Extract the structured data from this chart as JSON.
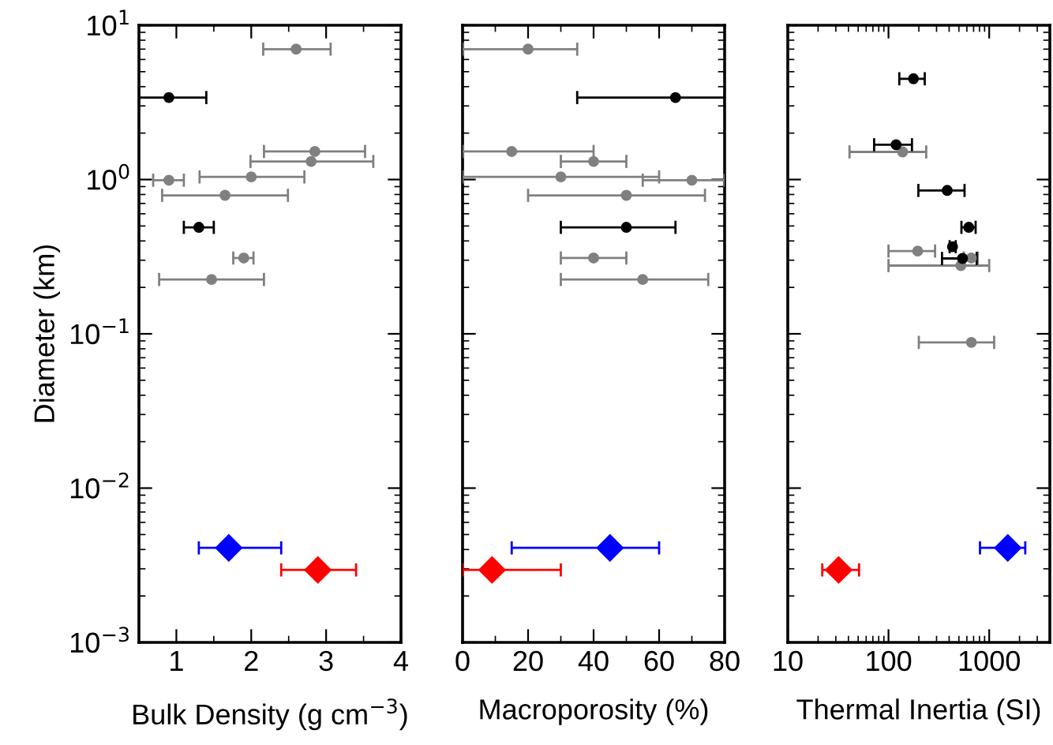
{
  "chart_data": [
    {
      "type": "scatter",
      "xlabel": "Bulk Density (g cm$^{−3}$)",
      "ylabel": "Diameter (km)",
      "xlim": [
        0.5,
        4
      ],
      "xticks": [
        1,
        2,
        3,
        4
      ],
      "ylim": [
        0.001,
        10
      ],
      "log": "y",
      "yticks": [
        {
          "value": 0.001,
          "label": "10$^{−3}$"
        },
        {
          "value": 0.01,
          "label": "10$^{−2}$"
        },
        {
          "value": 0.1,
          "label": "10$^{−1}$"
        },
        {
          "value": 1,
          "label": "10$^{0}$"
        },
        {
          "value": 10,
          "label": "10$^{1}$"
        }
      ],
      "grid": false,
      "legend": false,
      "series": [
        {
          "color": "#808080",
          "marker": "circle",
          "x": [
            2.6,
            2.85,
            2.8,
            2.0,
            0.9,
            1.65,
            1.9,
            1.47
          ],
          "values": [
            7.0,
            1.52,
            1.31,
            1.04,
            0.99,
            0.79,
            0.31,
            0.225
          ],
          "xerrors": [
            [
              2.16,
              3.06
            ],
            [
              2.17,
              3.52
            ],
            [
              1.99,
              3.63
            ],
            [
              1.31,
              2.71
            ],
            [
              0.69,
              1.1
            ],
            [
              0.81,
              2.49
            ],
            [
              1.76,
              2.03
            ],
            [
              0.77,
              2.17
            ]
          ]
        },
        {
          "color": "#000000",
          "marker": "circle",
          "x": [
            0.9,
            1.3
          ],
          "values": [
            3.4,
            0.49
          ],
          "xerrors": [
            [
              0.5,
              1.4
            ],
            [
              1.1,
              1.5
            ]
          ]
        },
        {
          "color": "#0000ff",
          "marker": "diamond",
          "x": [
            1.7
          ],
          "values": [
            0.0041
          ],
          "xerrors": [
            [
              1.3,
              2.4
            ]
          ]
        },
        {
          "color": "#ff0000",
          "marker": "diamond",
          "x": [
            2.89
          ],
          "values": [
            0.00295
          ],
          "xerrors": [
            [
              2.4,
              3.4
            ]
          ]
        }
      ]
    },
    {
      "type": "scatter",
      "xlabel": "Macroporosity (%)",
      "xlim": [
        0,
        80
      ],
      "xticks": [
        0,
        20,
        40,
        60,
        80
      ],
      "ylim": [
        0.001,
        10
      ],
      "log": "y",
      "yticks": [
        {
          "value": 0.001,
          "label": null
        },
        {
          "value": 0.01,
          "label": null
        },
        {
          "value": 0.1,
          "label": null
        },
        {
          "value": 1,
          "label": null
        },
        {
          "value": 10,
          "label": null
        }
      ],
      "tick_labels": "x",
      "grid": false,
      "legend": false,
      "series": [
        {
          "color": "#808080",
          "marker": "circle",
          "x": [
            20,
            15,
            40,
            30,
            70,
            50,
            40,
            55
          ],
          "values": [
            7.0,
            1.52,
            1.31,
            1.04,
            0.99,
            0.79,
            0.31,
            0.225
          ],
          "xerrors": [
            [
              0,
              35
            ],
            [
              0,
              40
            ],
            [
              30,
              50
            ],
            [
              0,
              60
            ],
            [
              55,
              80
            ],
            [
              20,
              74
            ],
            [
              30,
              50
            ],
            [
              30,
              75
            ]
          ]
        },
        {
          "color": "#000000",
          "marker": "circle",
          "x": [
            65,
            50
          ],
          "values": [
            3.4,
            0.49
          ],
          "xerrors": [
            [
              35,
              80
            ],
            [
              30,
              65
            ]
          ]
        },
        {
          "color": "#0000ff",
          "marker": "diamond",
          "x": [
            45
          ],
          "values": [
            0.0041
          ],
          "xerrors": [
            [
              15,
              60
            ]
          ]
        },
        {
          "color": "#ff0000",
          "marker": "diamond",
          "x": [
            9
          ],
          "values": [
            0.00295
          ],
          "xerrors": [
            [
              0,
              30
            ]
          ]
        }
      ]
    },
    {
      "type": "scatter",
      "xlabel": "Thermal Inertia (SI)",
      "log": "xy",
      "xlim": [
        10,
        4000
      ],
      "xticks": [
        10,
        100,
        1000
      ],
      "ylim": [
        0.001,
        10
      ],
      "yticks": [
        {
          "value": 0.001,
          "label": null
        },
        {
          "value": 0.01,
          "label": null
        },
        {
          "value": 0.1,
          "label": null
        },
        {
          "value": 1,
          "label": null
        },
        {
          "value": 10,
          "label": null
        }
      ],
      "tick_labels": "x",
      "grid": false,
      "legend": false,
      "series": [
        {
          "color": "#808080",
          "marker": "circle",
          "x": [
            138,
            195,
            665,
            523,
            665
          ],
          "values": [
            1.51,
            0.344,
            0.31,
            0.277,
            0.088
          ],
          "xerrors": [
            [
              41,
              237
            ],
            [
              100,
              290
            ],
            [
              560,
              770
            ],
            [
              100,
              1000
            ],
            [
              200,
              1120
            ]
          ]
        },
        {
          "color": "#000000",
          "marker": "circle",
          "x": [
            177,
            119,
            383,
            627,
            432,
            543
          ],
          "values": [
            4.5,
            1.68,
            0.85,
            0.49,
            0.367,
            0.308
          ],
          "xerrors": [
            [
              128,
              229
            ],
            [
              72,
              171
            ],
            [
              198,
              569
            ],
            [
              530,
              733
            ],
            [
              405,
              465
            ],
            [
              340,
              751
            ]
          ]
        },
        {
          "color": "#0000ff",
          "marker": "diamond",
          "x": [
            1530
          ],
          "values": [
            0.0041
          ],
          "xerrors": [
            [
              810,
              2280
            ]
          ]
        },
        {
          "color": "#ff0000",
          "marker": "diamond",
          "x": [
            32
          ],
          "values": [
            0.00295
          ],
          "xerrors": [
            [
              22,
              51
            ]
          ]
        }
      ]
    }
  ]
}
